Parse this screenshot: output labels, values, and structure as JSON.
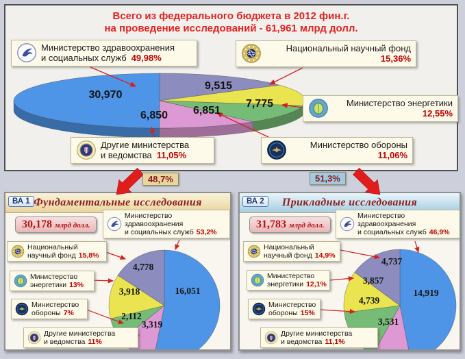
{
  "header": {
    "title_line1": "Всего из федерального бюджета в 2012 фин.г.",
    "title_line2": "на проведение исследований - 61,961 млрд долл."
  },
  "split": {
    "left_share": "48,7%",
    "right_share": "51,3%"
  },
  "main_callouts": {
    "hhs": {
      "line1": "Министерство здравоохранения",
      "line2": "и социальных служб",
      "pct": "49,98%"
    },
    "nsf": {
      "line1": "Национальный научный фонд",
      "pct": "15,36%"
    },
    "doe": {
      "line1": "Министерство энергетики",
      "pct": "12,55%"
    },
    "dod": {
      "line1": "Министерство обороны",
      "pct": "11,06%"
    },
    "other": {
      "line1": "Другие министерства",
      "line2": "и ведомства",
      "pct": "11,05%"
    }
  },
  "panel_callouts": {
    "hhs": {
      "line1": "Министерство",
      "line2": "здравоохранения",
      "line3": "и социальных служб"
    },
    "nsf": {
      "line1": "Национальный",
      "line2": "научный фонд"
    },
    "doe": {
      "line1": "Министерство",
      "line2": "энергетики"
    },
    "dod": {
      "line1": "Министерство",
      "line2": "обороны"
    },
    "other": {
      "line1": "Другие министерства",
      "line2": "и ведомства"
    }
  },
  "panels": {
    "left": {
      "badge": "ВА 1",
      "title": "Фундаментальные исследования",
      "amount": "30,178",
      "unit": "млрд долл.",
      "pcts": {
        "hhs": "53,2%",
        "nsf": "15,8%",
        "doe": "13%",
        "dod": "7%",
        "other": "11%"
      }
    },
    "right": {
      "badge": "ВА 2",
      "title": "Прикладные исследования",
      "amount": "31,783",
      "unit": "млрд долл.",
      "pcts": {
        "hhs": "46,9%",
        "nsf": "14,9%",
        "doe": "12,1%",
        "dod": "15%",
        "other": "11,1%"
      }
    }
  },
  "icons": {
    "hhs": "hhs-seal",
    "nsf": "nsf-seal",
    "doe": "doe-seal",
    "dod": "dod-seal",
    "other": "doj-seal"
  },
  "colors": {
    "hhs": "#4f95e7",
    "nsf": "#8c8cbe",
    "doe": "#e9e44f",
    "dod": "#76bb76",
    "other": "#dd99d3",
    "accent_red": "#e11c1c",
    "pct_red": "#c00000"
  },
  "chart_data": [
    {
      "id": "total_2012",
      "type": "pie",
      "title": "Всего из федерального бюджета в 2012 фин.г. на проведение исследований",
      "total_display": "61,961 млрд долл.",
      "categories": [
        "Министерство здравоохранения и социальных служб",
        "Национальный научный фонд",
        "Министерство энергетики",
        "Министерство обороны",
        "Другие министерства и ведомства"
      ],
      "values": [
        30.97,
        9.515,
        7.775,
        6.851,
        6.85
      ],
      "value_labels": [
        "30,970",
        "9,515",
        "7,775",
        "6,851",
        "6,850"
      ],
      "percent_labels": [
        "49,98%",
        "15,36%",
        "12,55%",
        "11,06%",
        "11,05%"
      ],
      "colors": [
        "#4f95e7",
        "#8c8cbe",
        "#e9e44f",
        "#76bb76",
        "#dd99d3"
      ],
      "render": {
        "style": "3d",
        "start_deg": -90,
        "clockwise": true,
        "draw_order": [
          1,
          2,
          3,
          4,
          0
        ]
      }
    },
    {
      "id": "fundamental",
      "type": "pie",
      "title": "Фундаментальные исследования",
      "total_display": "30,178 млрд долл.",
      "share_of_total": "48,7%",
      "categories": [
        "Министерство здравоохранения и социальных служб",
        "Национальный научный фонд",
        "Министерство энергетики",
        "Министерство обороны",
        "Другие министерства и ведомства"
      ],
      "values": [
        16.051,
        4.778,
        3.918,
        2.112,
        3.319
      ],
      "value_labels": [
        "16,051",
        "4,778",
        "3,918",
        "2,112",
        "3,319"
      ],
      "percent_labels": [
        "53,2%",
        "15,8%",
        "13%",
        "7%",
        "11%"
      ],
      "colors": [
        "#4f95e7",
        "#8c8cbe",
        "#e9e44f",
        "#76bb76",
        "#dd99d3"
      ],
      "render": {
        "style": "flat",
        "start_deg": -90,
        "clockwise": true,
        "draw_order": [
          0,
          4,
          3,
          2,
          1
        ]
      }
    },
    {
      "id": "applied",
      "type": "pie",
      "title": "Прикладные исследования",
      "total_display": "31,783 млрд долл.",
      "share_of_total": "51,3%",
      "categories": [
        "Министерство здравоохранения и социальных служб",
        "Национальный научный фонд",
        "Министерство энергетики",
        "Министерство обороны",
        "Другие министерства и ведомства"
      ],
      "values": [
        14.919,
        4.737,
        3.857,
        4.739,
        3.531
      ],
      "value_labels": [
        "14,919",
        "4,737",
        "3,857",
        "4,739",
        "3,531"
      ],
      "percent_labels": [
        "46,9%",
        "14,9%",
        "12,1%",
        "15%",
        "11,1%"
      ],
      "colors": [
        "#4f95e7",
        "#8c8cbe",
        "#e9e44f",
        "#76bb76",
        "#dd99d3"
      ],
      "render": {
        "style": "flat",
        "start_deg": -90,
        "clockwise": true,
        "draw_order": [
          0,
          4,
          3,
          2,
          1
        ]
      }
    }
  ]
}
